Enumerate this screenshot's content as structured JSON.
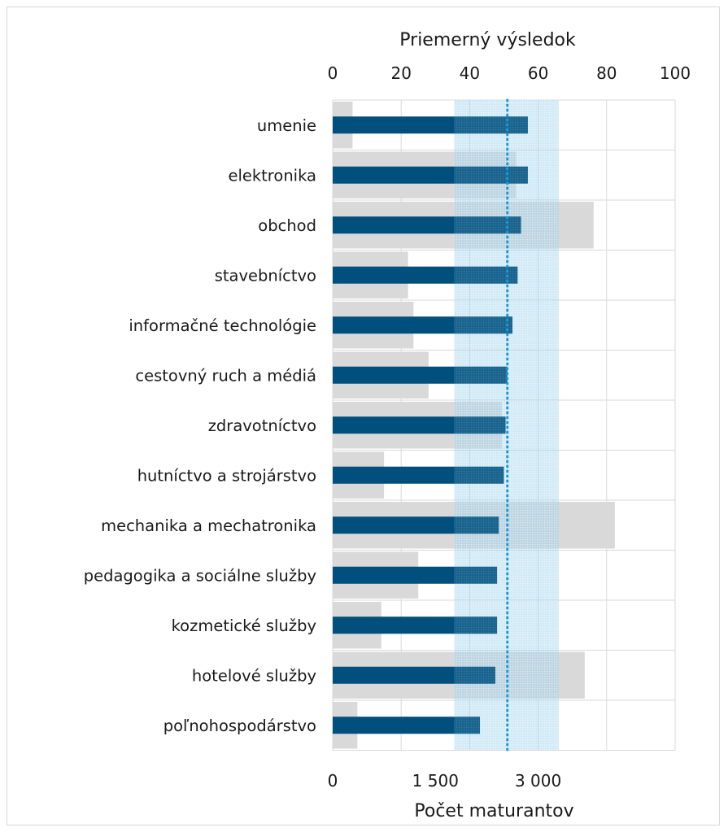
{
  "chart_data": {
    "type": "bar",
    "top_axis": {
      "title": "Priemerný výsledok",
      "ticks": [
        "0",
        "20",
        "40",
        "60",
        "80",
        "100"
      ],
      "range": [
        0,
        100
      ]
    },
    "bottom_axis": {
      "title": "Počet maturantov",
      "ticks": [
        "0",
        "1 500",
        "3 000"
      ],
      "range": [
        0,
        5000
      ]
    },
    "categories": [
      "umenie",
      "elektronika",
      "obchod",
      "stavebníctvo",
      "informačné technológie",
      "cestovný ruch a médiá",
      "zdravotníctvo",
      "hutníctvo a strojárstvo",
      "mechanika a mechatronika",
      "pedagogika a sociálne služby",
      "kozmetické služby",
      "hotelové služby",
      "poľnohospodárstvo"
    ],
    "series": [
      {
        "axis": "top",
        "color": "#004f7d",
        "values": [
          57,
          57,
          55,
          54,
          52.5,
          51,
          50.5,
          50,
          48.5,
          48,
          48,
          47.5,
          43
        ]
      },
      {
        "axis": "bottom",
        "color": "#d9d9d9",
        "values": [
          290,
          2680,
          3810,
          1100,
          1180,
          1400,
          2470,
          750,
          4120,
          1250,
          710,
          3680,
          360
        ]
      }
    ],
    "reference_line": {
      "axis": "top",
      "value": 51,
      "style": "dotted",
      "color": "#1b9ad6"
    },
    "reference_band": {
      "axis": "top",
      "from": 35.5,
      "to": 66,
      "color": "#8ccbea"
    },
    "gridlines": true,
    "legend": "none"
  }
}
